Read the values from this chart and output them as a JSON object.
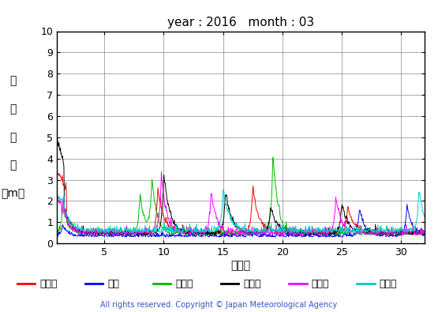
{
  "title": "year : 2016   month : 03",
  "xlabel": "（日）",
  "ylabel_chars": [
    "有",
    "義",
    "波",
    "高",
    "（m）"
  ],
  "xlim": [
    1,
    32
  ],
  "ylim": [
    0,
    10
  ],
  "yticks": [
    0,
    1,
    2,
    3,
    4,
    5,
    6,
    7,
    8,
    9,
    10
  ],
  "xticks": [
    5,
    10,
    15,
    20,
    25,
    30
  ],
  "copyright": "All rights reserved. Copyright © Japan Meteorological Agency",
  "series": [
    {
      "label": "上ノ国",
      "color": "#ff0000"
    },
    {
      "label": "唐桑",
      "color": "#0000ff"
    },
    {
      "label": "石廀崎",
      "color": "#00bb00"
    },
    {
      "label": "経ヶ岸",
      "color": "#000000"
    },
    {
      "label": "生月島",
      "color": "#ff00ff"
    },
    {
      "label": "屋久島",
      "color": "#00cccc"
    }
  ],
  "n_points": 744,
  "background": "#ffffff",
  "grid_color": "#888888"
}
